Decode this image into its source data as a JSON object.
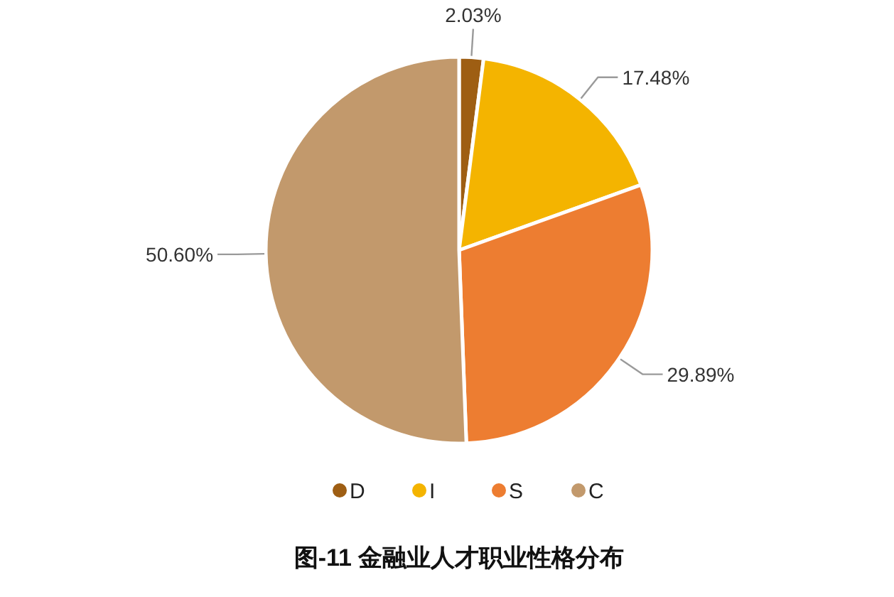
{
  "chart_data": {
    "type": "pie",
    "title": "图-11 金融业人才职业性格分布",
    "categories": [
      "D",
      "I",
      "S",
      "C"
    ],
    "values": [
      2.03,
      17.48,
      29.89,
      50.6
    ],
    "value_labels": [
      "2.03%",
      "17.48%",
      "29.89%",
      "50.60%"
    ],
    "colors": [
      "#9e5e13",
      "#f4b400",
      "#ed7d31",
      "#c2996c"
    ],
    "legend": "bottom"
  }
}
